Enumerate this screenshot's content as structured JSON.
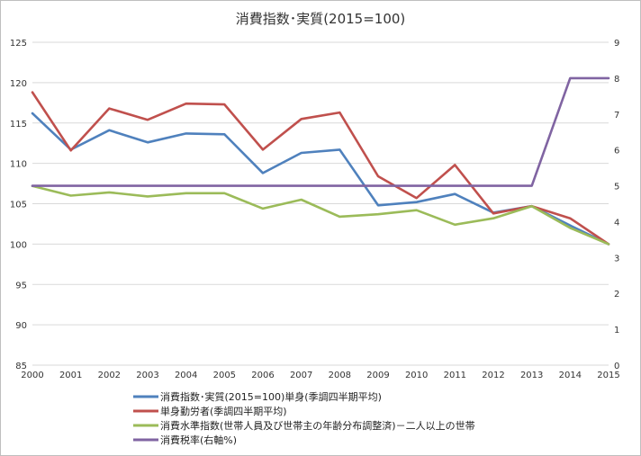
{
  "chart_data": {
    "type": "line",
    "title": "消費指数･実質(2015=100)",
    "x": [
      "2000",
      "2001",
      "2002",
      "2003",
      "2004",
      "2005",
      "2006",
      "2007",
      "2008",
      "2009",
      "2010",
      "2011",
      "2012",
      "2013",
      "2014",
      "2015"
    ],
    "y_left": {
      "min": 85,
      "max": 125,
      "step": 5,
      "ticks": [
        "85",
        "90",
        "95",
        "100",
        "105",
        "110",
        "115",
        "120",
        "125"
      ]
    },
    "y_right": {
      "min": 0,
      "max": 9,
      "step": 1,
      "ticks": [
        "0",
        "1",
        "2",
        "3",
        "4",
        "5",
        "6",
        "7",
        "8",
        "9"
      ]
    },
    "grid": "horizontal",
    "legend_position": "bottom",
    "series": [
      {
        "name": "消費指数･実質(2015=100)単身(季調四半期平均)",
        "axis": "left",
        "color": "#4f81bd",
        "values": [
          116.2,
          111.7,
          114.1,
          112.6,
          113.7,
          113.6,
          108.8,
          111.3,
          111.7,
          104.8,
          105.2,
          106.2,
          103.9,
          104.7,
          102.3,
          100.0
        ]
      },
      {
        "name": "単身勤労者(季調四半期平均)",
        "axis": "left",
        "color": "#c0504d",
        "values": [
          118.8,
          111.6,
          116.8,
          115.4,
          117.4,
          117.3,
          111.7,
          115.5,
          116.3,
          108.4,
          105.7,
          109.8,
          103.8,
          104.7,
          103.2,
          100.0
        ]
      },
      {
        "name": "消費水準指数(世帯人員及び世帯主の年齢分布調整済)－二人以上の世帯",
        "axis": "left",
        "color": "#9bbb59",
        "values": [
          107.2,
          106.0,
          106.4,
          105.9,
          106.3,
          106.3,
          104.4,
          105.5,
          103.4,
          103.7,
          104.2,
          102.4,
          103.2,
          104.7,
          102.0,
          100.0
        ]
      },
      {
        "name": "消費税率(右軸%)",
        "axis": "right",
        "color": "#8064a2",
        "values": [
          5,
          5,
          5,
          5,
          5,
          5,
          5,
          5,
          5,
          5,
          5,
          5,
          5,
          5,
          8,
          8
        ]
      }
    ]
  }
}
